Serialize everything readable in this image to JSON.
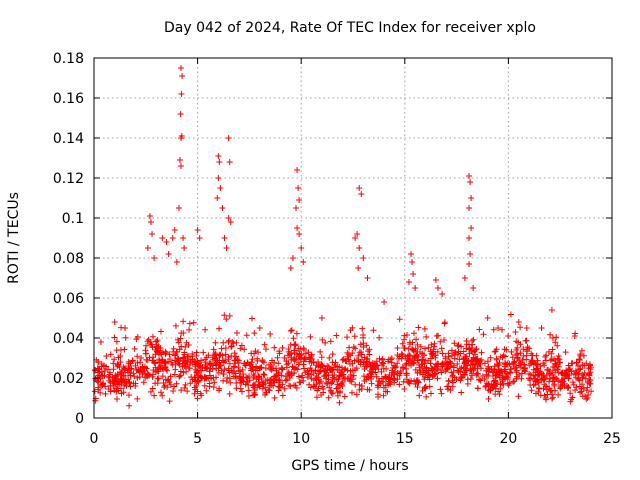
{
  "chart_data": {
    "type": "scatter",
    "title": "Day 042 of 2024, Rate Of TEC Index for receiver xplo",
    "xlabel": "GPS time / hours",
    "ylabel": "ROTI / TECUs",
    "xlim": [
      0,
      25
    ],
    "ylim": [
      0,
      0.18
    ],
    "xticks": [
      0,
      5,
      10,
      15,
      20,
      25
    ],
    "xtick_labels": [
      "0",
      "5",
      "10",
      "15",
      "20",
      "25"
    ],
    "yticks": [
      0,
      0.02,
      0.04,
      0.06,
      0.08,
      0.1,
      0.12,
      0.14,
      0.16,
      0.18
    ],
    "ytick_labels": [
      "0",
      "0.02",
      "0.04",
      "0.06",
      "0.08",
      "0.1",
      "0.12",
      "0.14",
      "0.16",
      "0.18"
    ],
    "grid": true,
    "marker": "+",
    "color": "#ff0000",
    "series": [
      {
        "name": "ROTI",
        "points": [
          [
            4.2,
            0.175
          ],
          [
            4.25,
            0.171
          ],
          [
            4.22,
            0.162
          ],
          [
            4.18,
            0.152
          ],
          [
            4.24,
            0.141
          ],
          [
            4.2,
            0.14
          ],
          [
            4.15,
            0.129
          ],
          [
            4.2,
            0.126
          ],
          [
            4.1,
            0.105
          ],
          [
            4.3,
            0.09
          ],
          [
            4.35,
            0.085
          ],
          [
            4.0,
            0.078
          ],
          [
            6.0,
            0.131
          ],
          [
            6.05,
            0.128
          ],
          [
            6.0,
            0.12
          ],
          [
            6.1,
            0.115
          ],
          [
            5.95,
            0.11
          ],
          [
            6.2,
            0.105
          ],
          [
            6.5,
            0.14
          ],
          [
            6.55,
            0.128
          ],
          [
            6.5,
            0.1
          ],
          [
            6.6,
            0.098
          ],
          [
            6.3,
            0.09
          ],
          [
            6.4,
            0.085
          ],
          [
            2.7,
            0.101
          ],
          [
            2.75,
            0.098
          ],
          [
            2.8,
            0.092
          ],
          [
            2.6,
            0.085
          ],
          [
            2.9,
            0.08
          ],
          [
            3.3,
            0.09
          ],
          [
            3.5,
            0.088
          ],
          [
            3.6,
            0.082
          ],
          [
            3.8,
            0.09
          ],
          [
            3.9,
            0.094
          ],
          [
            5.0,
            0.094
          ],
          [
            5.1,
            0.09
          ],
          [
            9.8,
            0.124
          ],
          [
            9.85,
            0.115
          ],
          [
            9.9,
            0.109
          ],
          [
            9.75,
            0.105
          ],
          [
            9.8,
            0.095
          ],
          [
            9.9,
            0.092
          ],
          [
            9.6,
            0.08
          ],
          [
            9.5,
            0.075
          ],
          [
            10.0,
            0.085
          ],
          [
            10.1,
            0.078
          ],
          [
            12.8,
            0.115
          ],
          [
            12.9,
            0.112
          ],
          [
            12.7,
            0.092
          ],
          [
            12.6,
            0.09
          ],
          [
            12.8,
            0.085
          ],
          [
            13.0,
            0.08
          ],
          [
            12.75,
            0.075
          ],
          [
            13.2,
            0.07
          ],
          [
            15.3,
            0.082
          ],
          [
            15.35,
            0.078
          ],
          [
            15.4,
            0.072
          ],
          [
            15.2,
            0.068
          ],
          [
            15.5,
            0.065
          ],
          [
            16.5,
            0.069
          ],
          [
            16.6,
            0.065
          ],
          [
            16.8,
            0.062
          ],
          [
            18.1,
            0.121
          ],
          [
            18.15,
            0.118
          ],
          [
            18.2,
            0.11
          ],
          [
            18.1,
            0.105
          ],
          [
            18.2,
            0.095
          ],
          [
            18.1,
            0.09
          ],
          [
            18.15,
            0.082
          ],
          [
            18.1,
            0.077
          ],
          [
            17.9,
            0.07
          ],
          [
            18.3,
            0.065
          ],
          [
            22.1,
            0.054
          ],
          [
            21.6,
            0.045
          ],
          [
            20.5,
            0.048
          ],
          [
            23.2,
            0.041
          ],
          [
            1.0,
            0.048
          ],
          [
            1.5,
            0.045
          ],
          [
            8.0,
            0.045
          ],
          [
            8.5,
            0.042
          ],
          [
            11.0,
            0.05
          ],
          [
            14.0,
            0.058
          ],
          [
            19.0,
            0.05
          ],
          [
            19.5,
            0.045
          ]
        ],
        "dense_band": {
          "x_range": [
            0,
            24
          ],
          "baseline_roti": 0.02,
          "typical_min": 0.006,
          "typical_max": 0.045
        }
      }
    ]
  }
}
